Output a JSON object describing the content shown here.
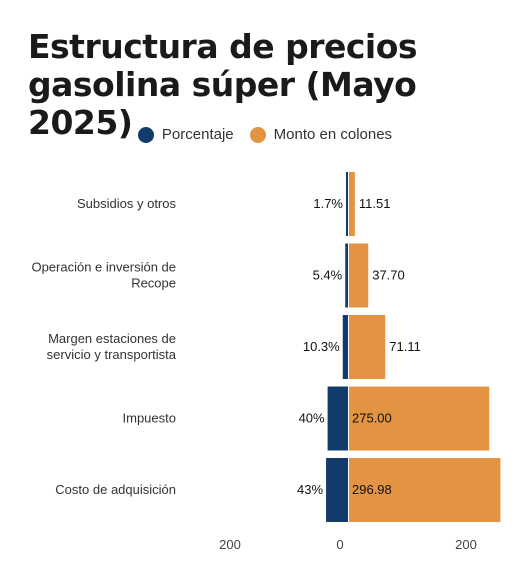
{
  "chart_data": {
    "type": "bar",
    "orientation": "horizontal",
    "title_line1": "Estructura de precios",
    "title_line2": "gasolina súper (Mayo 2025)",
    "categories": [
      "Subsidios y otros",
      "Operación e inversión de Recope",
      "Margen estaciones de servicio y transportista",
      "Impuesto",
      "Costo de adquisición"
    ],
    "category_lines": [
      [
        "Subsidios y otros"
      ],
      [
        "Operación e inversión de",
        "Recope"
      ],
      [
        "Margen estaciones de",
        "servicio y transportista"
      ],
      [
        "Impuesto"
      ],
      [
        "Costo de adquisición"
      ]
    ],
    "series": [
      {
        "name": "Porcentaje",
        "color": "#123a6b",
        "direction": "left",
        "values": [
          1.7,
          5.4,
          10.3,
          40,
          43
        ],
        "labels": [
          "1.7%",
          "5.4%",
          "10.3%",
          "40%",
          "43%"
        ]
      },
      {
        "name": "Monto en colones",
        "color": "#e39443",
        "direction": "right",
        "values": [
          11.51,
          37.7,
          71.11,
          275.0,
          296.98
        ],
        "labels": [
          "11.51",
          "37.70",
          "71.11",
          "275.00",
          "296.98"
        ]
      }
    ],
    "x_ticks": [
      {
        "value": -200,
        "label": "200"
      },
      {
        "value": 0,
        "label": "0"
      },
      {
        "value": 200,
        "label": "200"
      }
    ],
    "xlim": [
      -200,
      300
    ],
    "legend_position": "top-center",
    "grid": false
  }
}
